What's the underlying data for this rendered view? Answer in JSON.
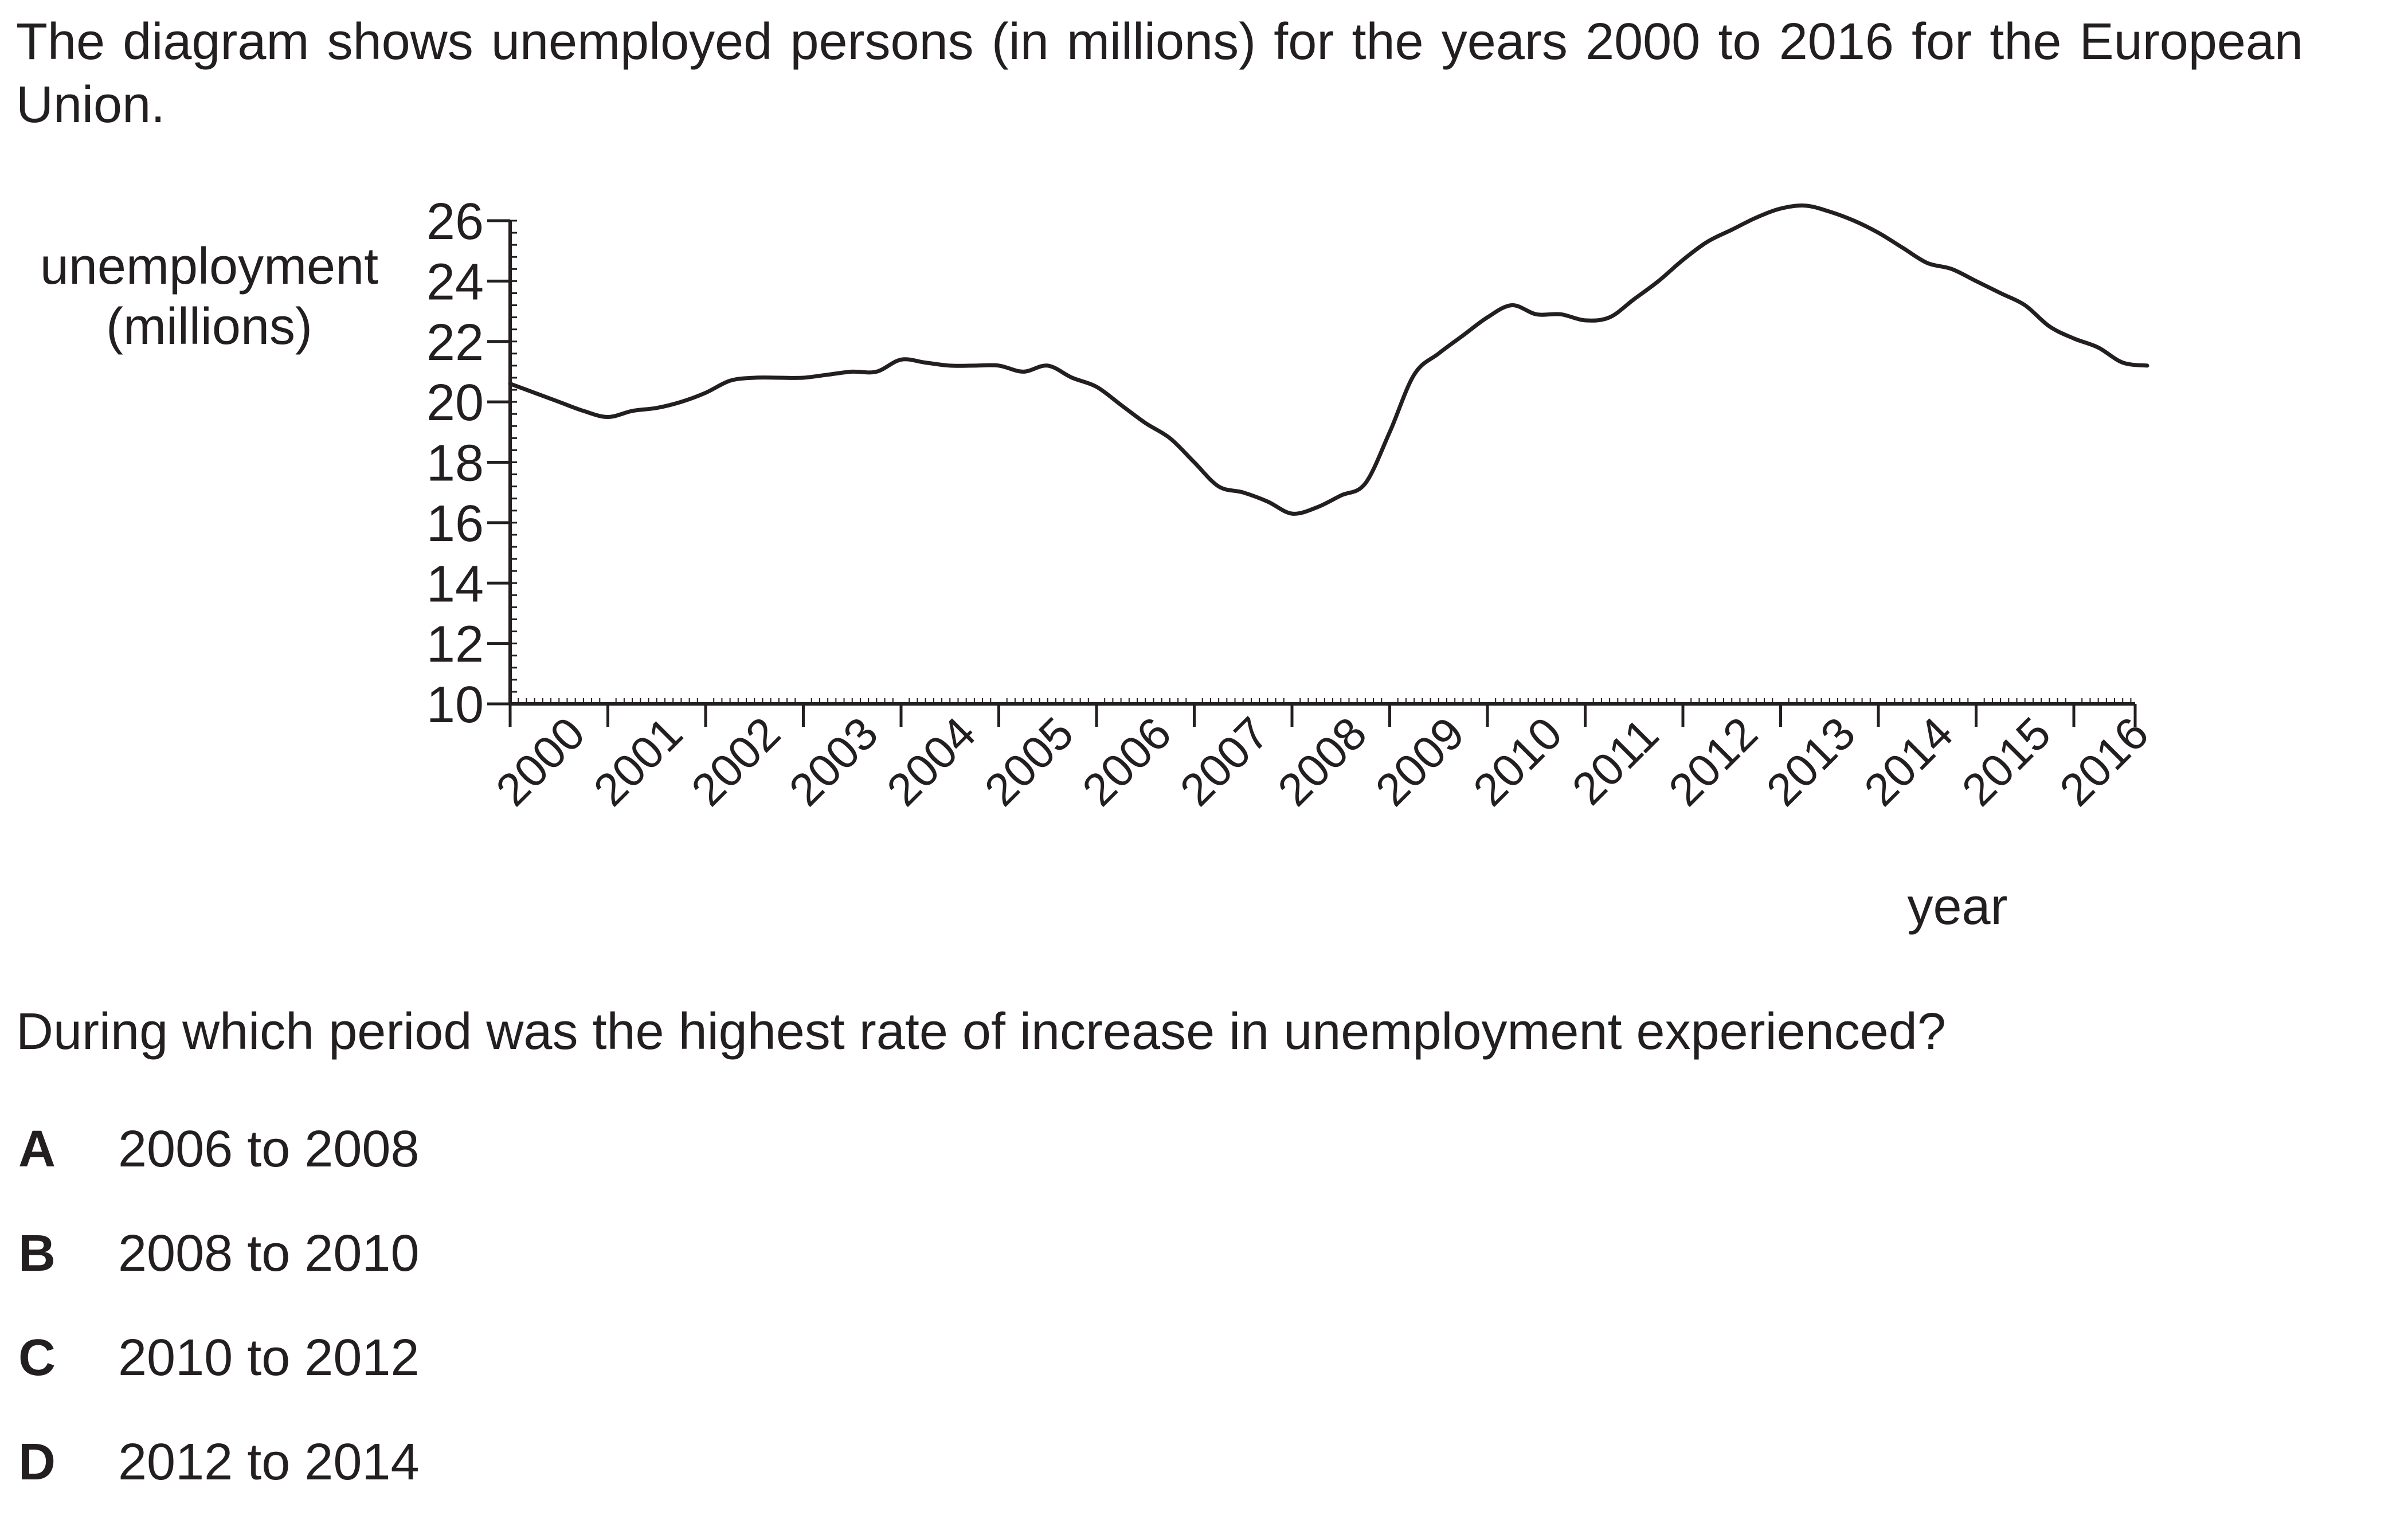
{
  "intro": "The diagram shows unemployed persons (in millions) for the years 2000 to 2016 for the European Union.",
  "question": "During which period was the highest rate of increase in unemployment experienced?",
  "options": [
    {
      "letter": "A",
      "text": "2006 to 2008"
    },
    {
      "letter": "B",
      "text": "2008 to 2010"
    },
    {
      "letter": "C",
      "text": "2010 to 2012"
    },
    {
      "letter": "D",
      "text": "2012 to 2014"
    }
  ],
  "chart_data": {
    "type": "line",
    "title": "",
    "ylabel": [
      "unemployment",
      "(millions)"
    ],
    "xlabel": "year",
    "ylim": [
      10,
      26
    ],
    "xlim": [
      2000,
      2016.8
    ],
    "yticks": [
      10,
      12,
      14,
      16,
      18,
      20,
      22,
      24,
      26
    ],
    "xticks": [
      "2000",
      "2001",
      "2002",
      "2003",
      "2004",
      "2005",
      "2006",
      "2007",
      "2008",
      "2009",
      "2010",
      "2011",
      "2012",
      "2013",
      "2014",
      "2015",
      "2016"
    ],
    "grid": false,
    "line_color": "#231f20",
    "series": [
      {
        "x": [
          2000.0,
          2000.25,
          2000.5,
          2000.75,
          2001.0,
          2001.25,
          2001.5,
          2001.75,
          2002.0,
          2002.25,
          2002.5,
          2002.75,
          2003.0,
          2003.25,
          2003.5,
          2003.75,
          2004.0,
          2004.25,
          2004.5,
          2004.75,
          2005.0,
          2005.25,
          2005.5,
          2005.75,
          2006.0,
          2006.25,
          2006.5,
          2006.75,
          2007.0,
          2007.25,
          2007.5,
          2007.75,
          2008.0,
          2008.25,
          2008.5,
          2008.75,
          2009.0,
          2009.25,
          2009.5,
          2009.75,
          2010.0,
          2010.25,
          2010.5,
          2010.75,
          2011.0,
          2011.25,
          2011.5,
          2011.75,
          2012.0,
          2012.25,
          2012.5,
          2012.75,
          2013.0,
          2013.25,
          2013.5,
          2013.75,
          2014.0,
          2014.25,
          2014.5,
          2014.75,
          2015.0,
          2015.25,
          2015.5,
          2015.75,
          2016.0,
          2016.25,
          2016.5,
          2016.75
        ],
        "values": [
          20.6,
          20.3,
          20.0,
          19.7,
          19.5,
          19.7,
          19.8,
          20.0,
          20.3,
          20.7,
          20.8,
          20.8,
          20.8,
          20.9,
          21.0,
          21.0,
          21.4,
          21.3,
          21.2,
          21.2,
          21.2,
          21.0,
          21.2,
          20.8,
          20.5,
          19.9,
          19.3,
          18.8,
          18.0,
          17.2,
          17.0,
          16.7,
          16.3,
          16.5,
          16.9,
          17.3,
          19.0,
          20.9,
          21.6,
          22.2,
          22.8,
          23.2,
          22.9,
          22.9,
          22.7,
          22.8,
          23.4,
          24.0,
          24.7,
          25.3,
          25.7,
          26.1,
          26.4,
          26.5,
          26.3,
          26.0,
          25.6,
          25.1,
          24.6,
          24.4,
          24.0,
          23.6,
          23.2,
          22.5,
          22.1,
          21.8,
          21.3,
          21.2
        ]
      }
    ]
  }
}
